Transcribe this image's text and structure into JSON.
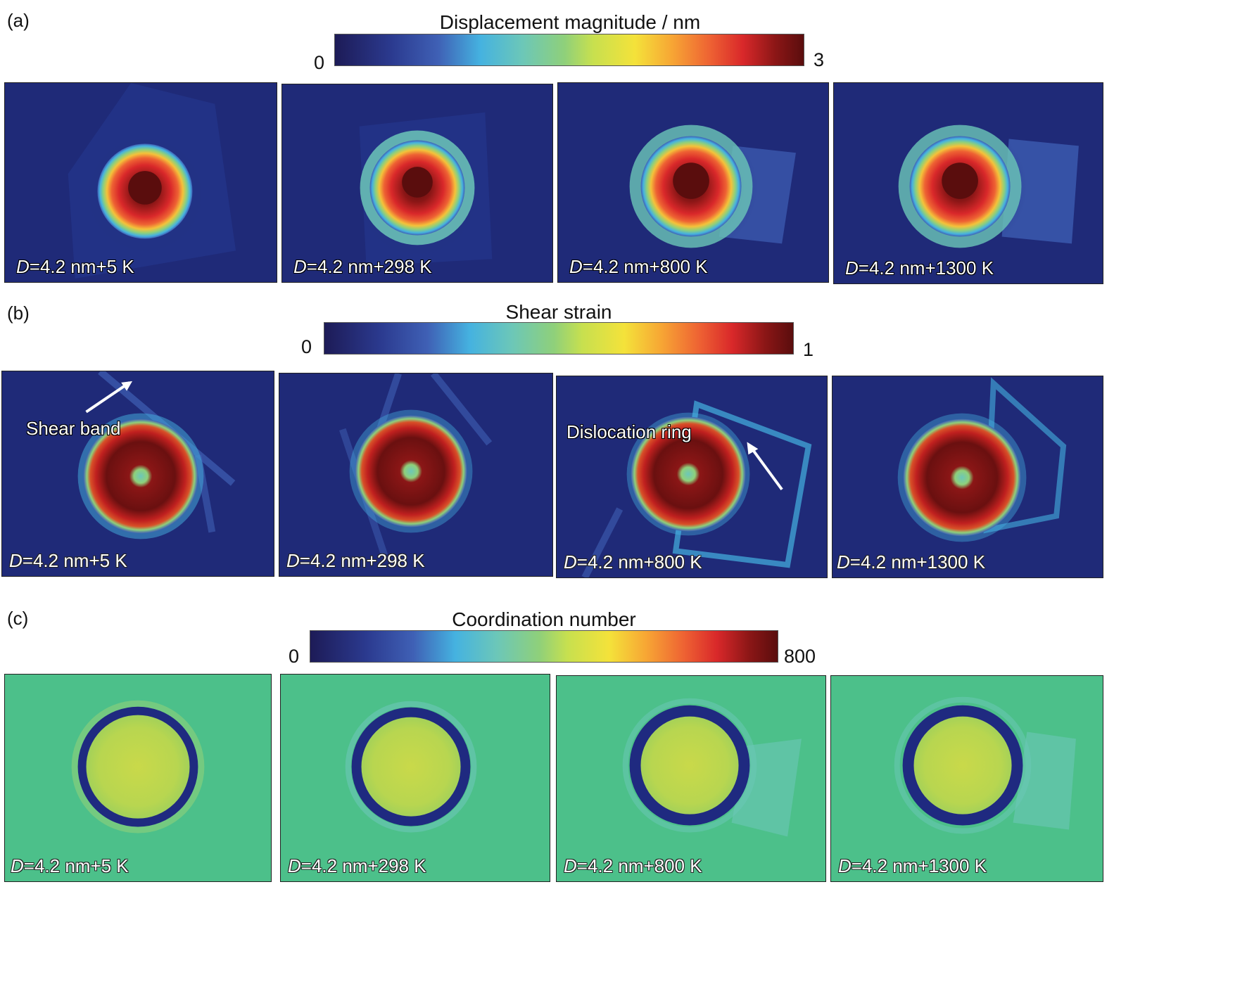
{
  "row_a": {
    "label": "(a)",
    "colorbar": {
      "title": "Displacement magnitude / nm",
      "min": "0",
      "max": "3"
    },
    "panels": [
      {
        "symbol": "D",
        "rest": "=4.2 nm+5 K"
      },
      {
        "symbol": "D",
        "rest": "=4.2 nm+298 K"
      },
      {
        "symbol": "D",
        "rest": "=4.2 nm+800 K"
      },
      {
        "symbol": "D",
        "rest": "=4.2 nm+1300 K"
      }
    ]
  },
  "row_b": {
    "label": "(b)",
    "colorbar": {
      "title": "Shear strain",
      "min": "0",
      "max": "1"
    },
    "annotations": {
      "shear_band": "Shear band",
      "dislocation_ring": "Dislocation ring"
    },
    "panels": [
      {
        "symbol": "D",
        "rest": "=4.2 nm+5 K"
      },
      {
        "symbol": "D",
        "rest": "=4.2 nm+298 K"
      },
      {
        "symbol": "D",
        "rest": "=4.2 nm+800 K"
      },
      {
        "symbol": "D",
        "rest": "=4.2 nm+1300 K"
      }
    ]
  },
  "row_c": {
    "label": "(c)",
    "colorbar": {
      "title": "Coordination number",
      "min": "0",
      "max": "800"
    },
    "panels": [
      {
        "symbol": "D",
        "rest": "=4.2 nm+5 K"
      },
      {
        "symbol": "D",
        "rest": "=4.2 nm+298 K"
      },
      {
        "symbol": "D",
        "rest": "=4.2 nm+800 K"
      },
      {
        "symbol": "D",
        "rest": "=4.2 nm+1300 K"
      }
    ]
  },
  "colors": {
    "map_background_dark": "#1f2a78",
    "map_background_green": "#4cc08a",
    "core_dark_red": "#7a0f0f",
    "ring_dark_blue": "#1f2a80"
  }
}
